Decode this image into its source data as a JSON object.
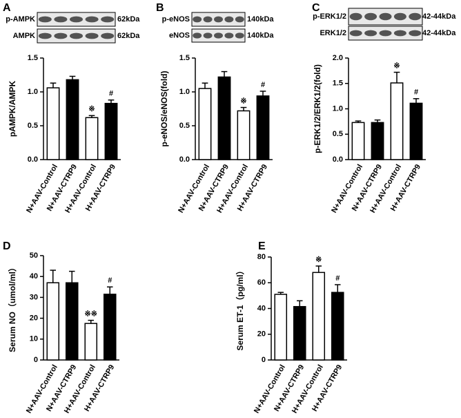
{
  "chart_data": [
    {
      "type": "bar",
      "panel": "A",
      "y_label": "pAMPK/AMPK",
      "blots": [
        {
          "protein": "p-AMPK",
          "size": "62kDa"
        },
        {
          "protein": "AMPK",
          "size": "62kDa"
        }
      ],
      "categories": [
        "N+AAV-Control",
        "N+AAV-CTRP9",
        "H+AAV-Control",
        "H+AAV-CTRP9"
      ],
      "values": [
        1.06,
        1.18,
        0.62,
        0.83
      ],
      "errors": [
        0.07,
        0.05,
        0.03,
        0.05
      ],
      "annotations": [
        null,
        null,
        "※",
        "#"
      ],
      "colors": [
        "#ffffff",
        "#000000",
        "#ffffff",
        "#000000"
      ],
      "ylim": [
        0,
        1.5
      ],
      "yticks": [
        {
          "value": 0,
          "label": "0.0"
        },
        {
          "value": 0.5,
          "label": "0.5"
        },
        {
          "value": 1,
          "label": "1.0"
        },
        {
          "value": 1.5,
          "label": "1.5"
        }
      ]
    },
    {
      "type": "bar",
      "panel": "B",
      "y_label": "p-eNOS/eNOS(fold)",
      "blots": [
        {
          "protein": "p-eNOS",
          "size": "140kDa"
        },
        {
          "protein": "eNOS",
          "size": "140kDa"
        }
      ],
      "categories": [
        "N+AAV-Control",
        "N+AAV-CTRP9",
        "H+AAV-Control",
        "H+AAV-CTRP9"
      ],
      "values": [
        1.05,
        1.22,
        0.72,
        0.94
      ],
      "errors": [
        0.08,
        0.08,
        0.05,
        0.07
      ],
      "annotations": [
        null,
        null,
        "※",
        "#"
      ],
      "colors": [
        "#ffffff",
        "#000000",
        "#ffffff",
        "#000000"
      ],
      "ylim": [
        0,
        1.5
      ],
      "yticks": [
        {
          "value": 0,
          "label": "0.0"
        },
        {
          "value": 0.5,
          "label": "0.5"
        },
        {
          "value": 1,
          "label": "1.0"
        },
        {
          "value": 1.5,
          "label": "1.5"
        }
      ]
    },
    {
      "type": "bar",
      "panel": "C",
      "y_label": "p-ERK1/2/ERK1/2(fold)",
      "blots": [
        {
          "protein": "p-ERK1/2",
          "size": "42-44kDa"
        },
        {
          "protein": "ERK1/2",
          "size": "42-44kDa"
        }
      ],
      "categories": [
        "N+AAV-Control",
        "N+AAV-CTRP9",
        "H+AAV-Control",
        "H+AAV-CTRP9"
      ],
      "values": [
        0.73,
        0.73,
        1.51,
        1.11
      ],
      "errors": [
        0.03,
        0.05,
        0.21,
        0.09
      ],
      "annotations": [
        null,
        null,
        "※",
        "#"
      ],
      "colors": [
        "#ffffff",
        "#000000",
        "#ffffff",
        "#000000"
      ],
      "ylim": [
        0,
        2
      ],
      "yticks": [
        {
          "value": 0,
          "label": "0.0"
        },
        {
          "value": 0.5,
          "label": "0.5"
        },
        {
          "value": 1,
          "label": "1.0"
        },
        {
          "value": 1.5,
          "label": "1.5"
        },
        {
          "value": 2,
          "label": "2.0"
        }
      ]
    },
    {
      "type": "bar",
      "panel": "D",
      "y_label": "Serum NO（umol/ml）",
      "categories": [
        "N+AAV-Control",
        "N+AAV-CTRP9",
        "H+AAV-Control",
        "H+AAV-CTRP9"
      ],
      "values": [
        37,
        37,
        17.5,
        31.5
      ],
      "errors": [
        6,
        5.5,
        1.5,
        3.5
      ],
      "annotations": [
        null,
        null,
        "※※",
        "#"
      ],
      "colors": [
        "#ffffff",
        "#000000",
        "#ffffff",
        "#000000"
      ],
      "ylim": [
        0,
        50
      ],
      "yticks": [
        0,
        10,
        20,
        30,
        40,
        50
      ]
    },
    {
      "type": "bar",
      "panel": "E",
      "y_label": "Serum ET-1（pg/ml）",
      "categories": [
        "N+AAV-Control",
        "N+AAV-CTRP9",
        "H+AAV-Control",
        "H+AAV-CTRP9"
      ],
      "values": [
        51,
        41.5,
        68,
        52.5
      ],
      "errors": [
        1.5,
        4.5,
        5,
        6
      ],
      "annotations": [
        null,
        null,
        "※",
        "#"
      ],
      "colors": [
        "#ffffff",
        "#000000",
        "#ffffff",
        "#000000"
      ],
      "ylim": [
        0,
        80
      ],
      "yticks": [
        0,
        20,
        40,
        60,
        80
      ]
    }
  ]
}
